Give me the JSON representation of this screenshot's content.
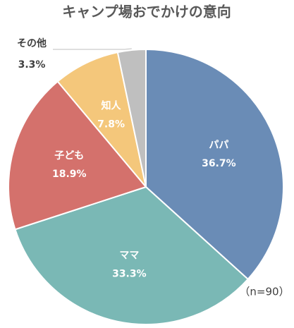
{
  "chart_data": {
    "type": "pie",
    "title": "キャンプ場おでかけの意向",
    "categories": [
      "パパ",
      "ママ",
      "子ども",
      "知人",
      "その他"
    ],
    "values": [
      36.7,
      33.3,
      18.9,
      7.8,
      3.3
    ],
    "value_labels": [
      "36.7%",
      "33.3%",
      "18.9%",
      "7.8%",
      "3.3%"
    ],
    "colors": [
      "#6a8cb6",
      "#7ab8b5",
      "#d4716c",
      "#f4c77b",
      "#bfbfbf"
    ],
    "note": "（n=90）"
  }
}
